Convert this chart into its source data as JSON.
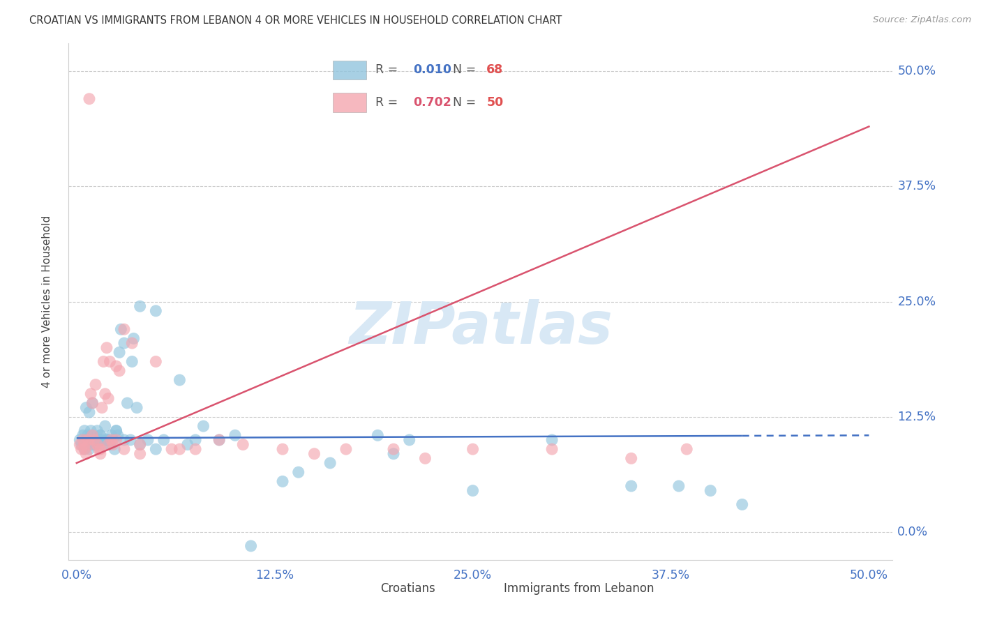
{
  "title": "CROATIAN VS IMMIGRANTS FROM LEBANON 4 OR MORE VEHICLES IN HOUSEHOLD CORRELATION CHART",
  "source": "Source: ZipAtlas.com",
  "ylabel": "4 or more Vehicles in Household",
  "ytick_values": [
    0.0,
    12.5,
    25.0,
    37.5,
    50.0
  ],
  "xlim": [
    0.0,
    50.0
  ],
  "ylim": [
    0.0,
    50.0
  ],
  "legend_R_croatian": "0.010",
  "legend_N_croatian": "68",
  "legend_R_lebanon": "0.702",
  "legend_N_lebanon": "50",
  "croatian_color": "#92c5de",
  "lebanon_color": "#f4a6b0",
  "croatian_line_color": "#4472c4",
  "lebanon_line_color": "#d9536e",
  "watermark_color": "#d8e8f5",
  "label_croatians": "Croatians",
  "label_lebanon": "Immigrants from Lebanon",
  "axis_color": "#4472c4",
  "grid_color": "#cccccc",
  "title_color": "#333333",
  "source_color": "#999999",
  "legend_text_color": "#555555",
  "legend_R_color_cr": "#4472c4",
  "legend_N_color_cr": "#e05050",
  "legend_R_color_lb": "#d9536e",
  "legend_N_color_lb": "#e05050",
  "cr_x": [
    0.2,
    0.3,
    0.4,
    0.5,
    0.5,
    0.6,
    0.7,
    0.7,
    0.8,
    0.9,
    1.0,
    1.0,
    1.1,
    1.2,
    1.3,
    1.4,
    1.5,
    1.6,
    1.7,
    1.8,
    1.9,
    2.0,
    2.1,
    2.2,
    2.3,
    2.4,
    2.5,
    2.6,
    2.7,
    2.8,
    3.0,
    3.2,
    3.4,
    3.6,
    3.8,
    4.0,
    4.5,
    5.0,
    5.5,
    6.5,
    7.5,
    9.0,
    11.0,
    14.0,
    16.0,
    19.0,
    21.0,
    25.0,
    35.0,
    40.0,
    0.6,
    0.8,
    1.0,
    1.5,
    2.0,
    2.5,
    3.0,
    4.0,
    5.0,
    8.0,
    10.0,
    13.0,
    20.0,
    30.0,
    38.0,
    42.0,
    3.5,
    7.0
  ],
  "cr_y": [
    10.0,
    9.5,
    10.5,
    9.0,
    11.0,
    10.0,
    9.5,
    10.5,
    9.0,
    11.0,
    10.5,
    9.5,
    10.0,
    9.5,
    11.0,
    10.0,
    10.5,
    10.0,
    9.5,
    11.5,
    10.0,
    10.0,
    9.5,
    10.5,
    10.0,
    9.0,
    11.0,
    10.5,
    19.5,
    22.0,
    20.5,
    14.0,
    10.0,
    21.0,
    13.5,
    24.5,
    10.0,
    24.0,
    10.0,
    16.5,
    10.0,
    10.0,
    -1.5,
    6.5,
    7.5,
    10.5,
    10.0,
    4.5,
    5.0,
    4.5,
    13.5,
    13.0,
    14.0,
    10.5,
    10.0,
    11.0,
    10.0,
    9.5,
    9.0,
    11.5,
    10.5,
    5.5,
    8.5,
    10.0,
    5.0,
    3.0,
    18.5,
    9.5
  ],
  "lb_x": [
    0.2,
    0.3,
    0.4,
    0.5,
    0.6,
    0.7,
    0.8,
    0.9,
    1.0,
    1.1,
    1.2,
    1.3,
    1.4,
    1.5,
    1.6,
    1.7,
    1.8,
    1.9,
    2.0,
    2.1,
    2.2,
    2.3,
    2.5,
    2.7,
    3.0,
    3.5,
    4.0,
    5.0,
    6.0,
    7.5,
    9.0,
    10.5,
    13.0,
    15.0,
    17.0,
    20.0,
    22.0,
    25.0,
    30.0,
    35.0,
    38.5,
    0.5,
    1.0,
    1.5,
    2.0,
    2.5,
    3.0,
    4.0,
    6.5,
    0.8
  ],
  "lb_y": [
    9.5,
    9.0,
    10.0,
    9.5,
    8.5,
    10.0,
    9.5,
    15.0,
    14.0,
    10.0,
    16.0,
    9.5,
    9.0,
    9.0,
    13.5,
    18.5,
    15.0,
    20.0,
    14.5,
    18.5,
    10.0,
    9.5,
    18.0,
    17.5,
    22.0,
    20.5,
    9.5,
    18.5,
    9.0,
    9.0,
    10.0,
    9.5,
    9.0,
    8.5,
    9.0,
    9.0,
    8.0,
    9.0,
    9.0,
    8.0,
    9.0,
    9.0,
    10.5,
    8.5,
    9.5,
    10.0,
    9.0,
    8.5,
    9.0,
    47.0
  ],
  "cr_trend_x0": 0.0,
  "cr_trend_x1": 50.0,
  "cr_trend_y0": 10.2,
  "cr_trend_y1": 10.5,
  "lb_trend_x0": 0.0,
  "lb_trend_x1": 50.0,
  "lb_trend_y0": 7.5,
  "lb_trend_y1": 44.0
}
